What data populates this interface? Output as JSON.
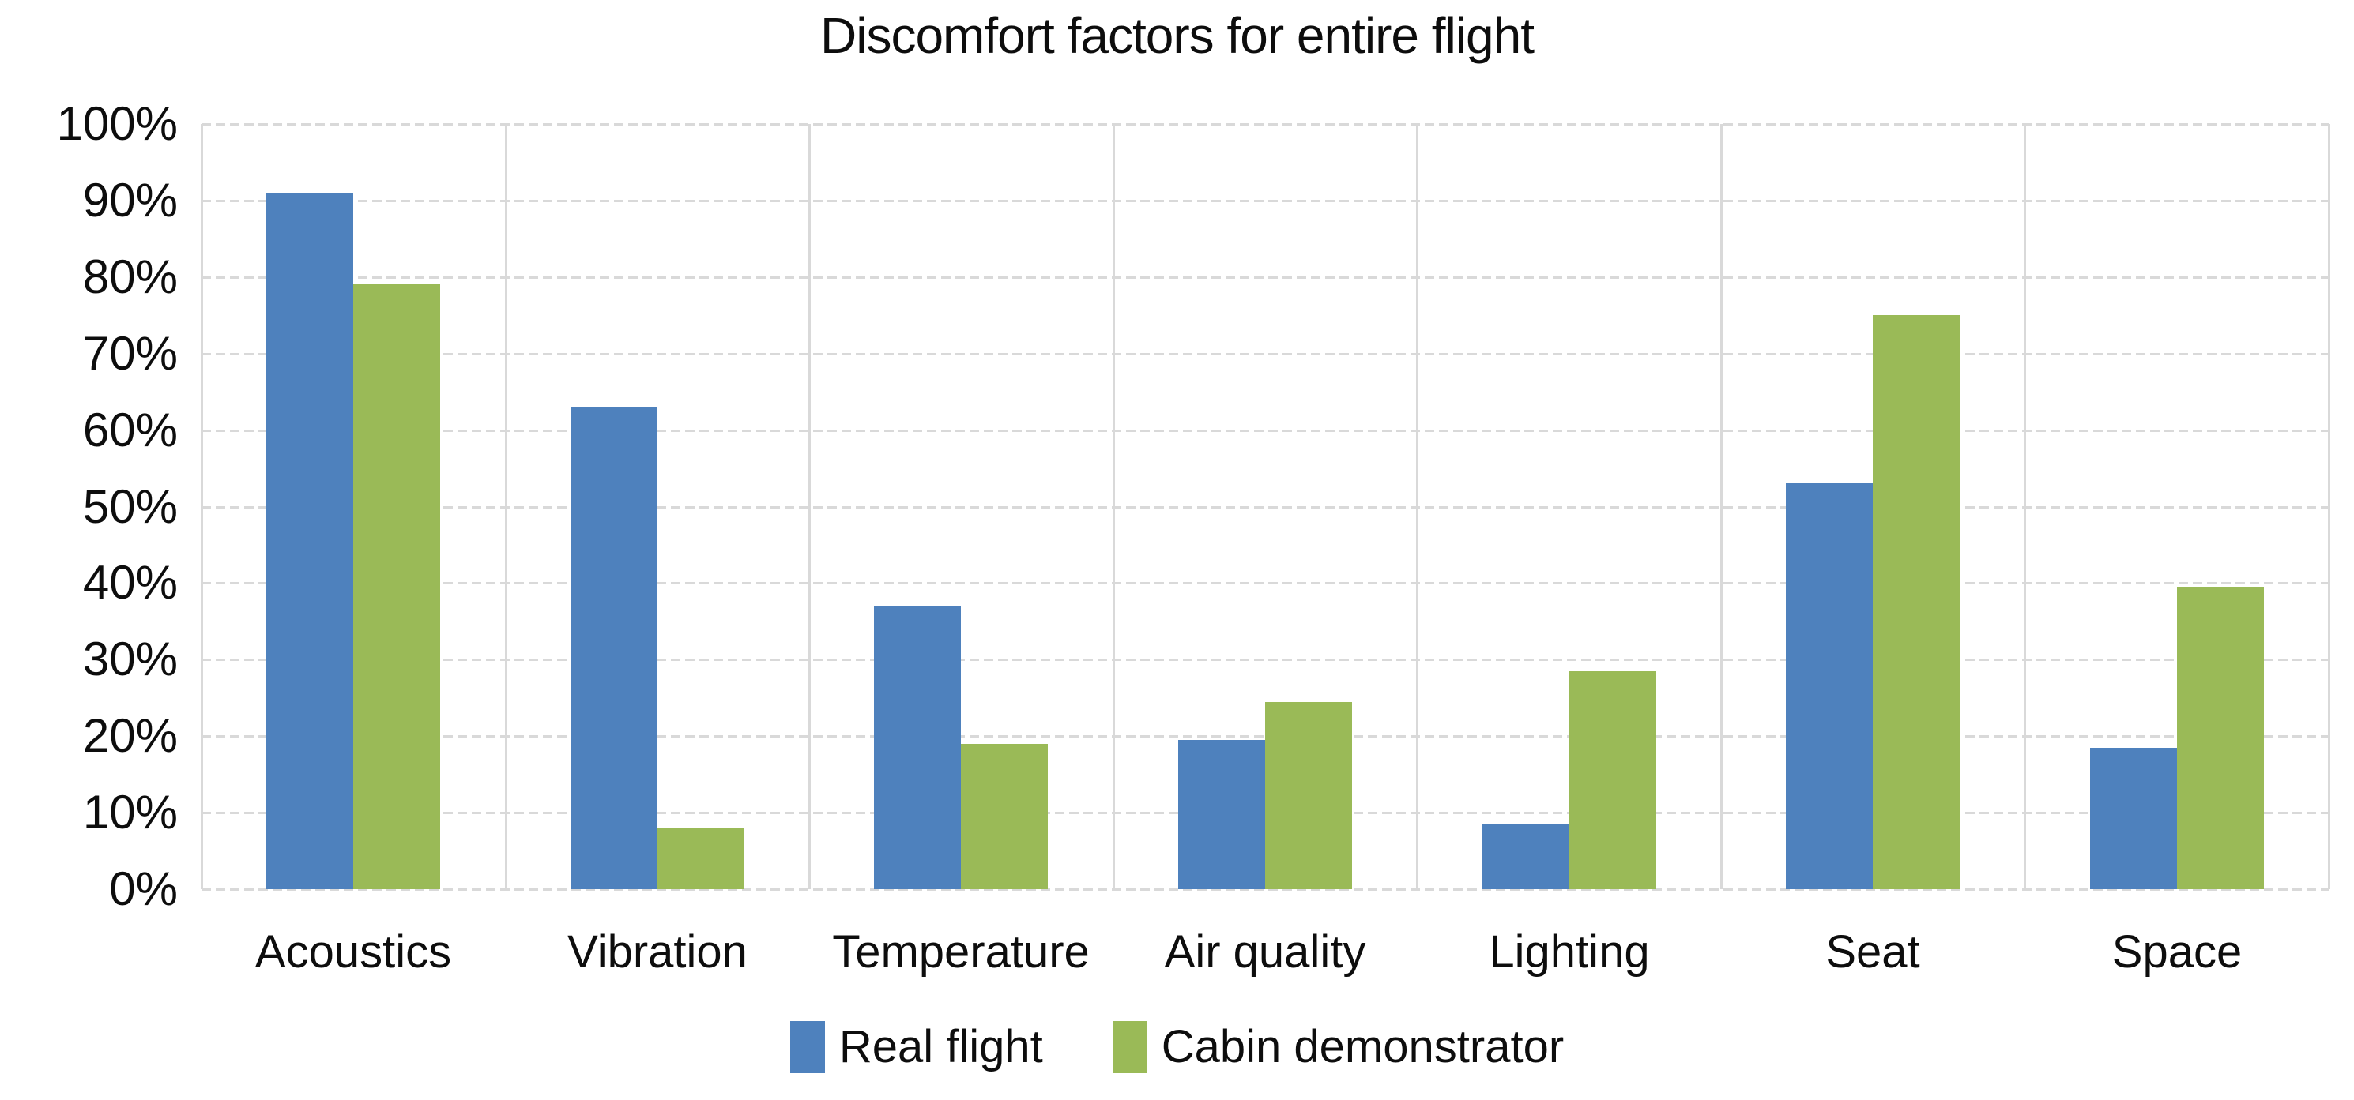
{
  "chart_data": {
    "type": "bar",
    "title": "Discomfort factors for entire flight",
    "categories": [
      "Acoustics",
      "Vibration",
      "Temperature",
      "Air quality",
      "Lighting",
      "Seat",
      "Space"
    ],
    "series": [
      {
        "name": "Real flight",
        "color": "#4E81BD",
        "values": [
          91,
          63,
          37,
          19.5,
          8.5,
          53,
          18.5
        ]
      },
      {
        "name": "Cabin demonstrator",
        "color": "#9ABA57",
        "values": [
          79,
          8,
          19,
          24.5,
          28.5,
          75,
          39.5
        ]
      }
    ],
    "xlabel": "",
    "ylabel": "",
    "ylim": [
      0,
      100
    ],
    "y_ticks": [
      "0%",
      "10%",
      "20%",
      "30%",
      "40%",
      "50%",
      "60%",
      "70%",
      "80%",
      "90%",
      "100%"
    ],
    "grid": true,
    "legend_position": "bottom"
  },
  "colors": {
    "gridline": "#d9d9d9",
    "text": "#0d0d0d",
    "background": "#ffffff"
  }
}
